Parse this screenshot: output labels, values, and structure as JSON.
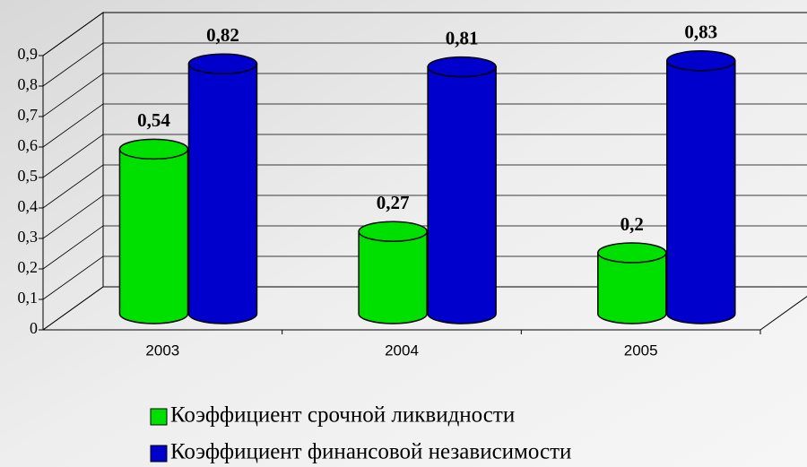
{
  "chart_data": {
    "type": "bar3d",
    "categories": [
      "2003",
      "2004",
      "2005"
    ],
    "series": [
      {
        "name": "Коэффициент срочной ликвидности",
        "color": "#00e000",
        "values": [
          0.54,
          0.27,
          0.2
        ],
        "value_labels": [
          "0,54",
          "0,27",
          "0,2"
        ]
      },
      {
        "name": "Коэффициент финансовой независимости",
        "color": "#0000cc",
        "values": [
          0.82,
          0.81,
          0.83
        ],
        "value_labels": [
          "0,82",
          "0,81",
          "0,83"
        ]
      }
    ],
    "ylim": [
      0,
      0.9
    ],
    "yticks": [
      0,
      {
        "value": 0.1,
        "label": "0,1"
      },
      {
        "value": 0.2,
        "label": "0,2"
      },
      {
        "value": 0.3,
        "label": "0,3"
      },
      {
        "value": 0.4,
        "label": "0,4"
      },
      {
        "value": 0.5,
        "label": "0,5"
      },
      {
        "value": 0.6,
        "label": "0,6"
      },
      {
        "value": 0.7,
        "label": "0,7"
      },
      {
        "value": 0.8,
        "label": "0,8"
      },
      {
        "value": 0.9,
        "label": "0,9"
      }
    ],
    "grid": true
  }
}
